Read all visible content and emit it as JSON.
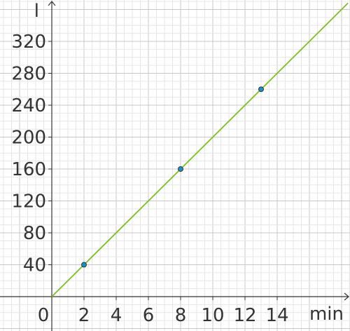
{
  "chart_data": {
    "type": "line",
    "xlabel": "min",
    "ylabel": "l",
    "xlim": [
      -3.2,
      18.4
    ],
    "ylim": [
      -48,
      372
    ],
    "grid": true,
    "x_ticks": [
      0,
      2,
      4,
      6,
      8,
      10,
      12,
      14
    ],
    "x_tick_labels": [
      "0",
      "2",
      "4",
      "6",
      "8",
      "10",
      "12",
      "14"
    ],
    "y_ticks": [
      40,
      80,
      120,
      160,
      200,
      240,
      280,
      320
    ],
    "y_tick_labels": [
      "40",
      "80",
      "120",
      "160",
      "200",
      "240",
      "280",
      "320"
    ],
    "line": {
      "x": [
        0,
        18.4
      ],
      "y": [
        0,
        368
      ],
      "color": "#7cc01e"
    },
    "points": {
      "x": [
        2,
        8,
        13
      ],
      "y": [
        40,
        160,
        260
      ],
      "color": "#1a8fc4"
    }
  }
}
